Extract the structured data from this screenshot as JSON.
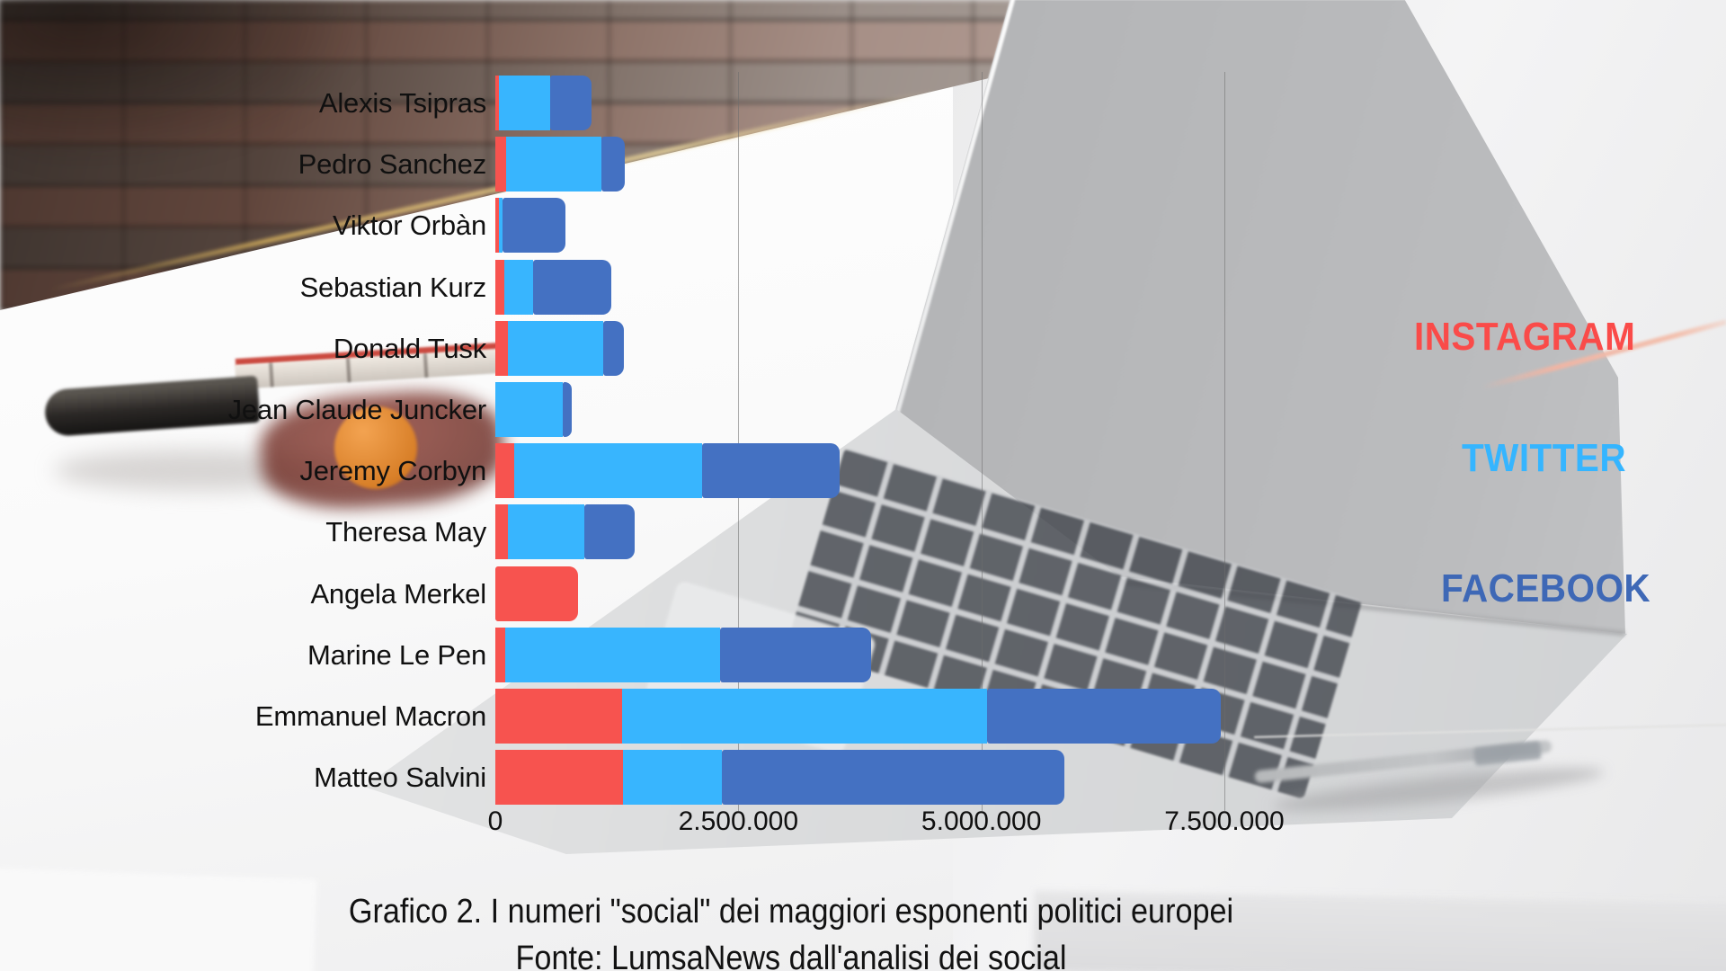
{
  "title": {
    "line1": "Grafico 2. I numeri \"social\" dei maggiori esponenti politici europei",
    "line2": "Fonte: LumsaNews dall'analisi dei social"
  },
  "legend": [
    {
      "label": "INSTAGRAM",
      "color": "#fa4b49"
    },
    {
      "label": "TWITTER",
      "color": "#35b5ff"
    },
    {
      "label": "FACEBOOK",
      "color": "#3e68b6"
    }
  ],
  "chart_data": {
    "type": "bar",
    "orientation": "horizontal",
    "stacked": true,
    "grid": "vertical",
    "legend_position": "right",
    "categories": [
      "Alexis Tsipras",
      "Pedro Sanchez",
      "Viktor Orbàn",
      "Sebastian Kurz",
      "Donald Tusk",
      "Jean Claude Juncker",
      "Jeremy Corbyn",
      "Theresa May",
      "Angela Merkel",
      "Marine Le Pen",
      "Emmanuel Macron",
      "Matteo Salvini"
    ],
    "series": [
      {
        "name": "Instagram",
        "color": "#f7534f",
        "values": [
          40000,
          110000,
          35000,
          90000,
          130000,
          0,
          195000,
          130000,
          850000,
          100000,
          1300000,
          1310000
        ]
      },
      {
        "name": "Twitter",
        "color": "#38b5fe",
        "values": [
          520000,
          980000,
          35000,
          300000,
          980000,
          690000,
          1930000,
          785000,
          0,
          2210000,
          3760000,
          1020000
        ]
      },
      {
        "name": "Facebook",
        "color": "#4471c2",
        "values": [
          430000,
          240000,
          650000,
          800000,
          215000,
          95000,
          1420000,
          520000,
          0,
          1560000,
          2400000,
          3520000
        ]
      }
    ],
    "xlim": [
      0,
      7500000
    ],
    "xticks": [
      {
        "value": 0,
        "label": "0"
      },
      {
        "value": 2500000,
        "label": "2.500.000"
      },
      {
        "value": 5000000,
        "label": "5.000.000"
      },
      {
        "value": 7500000,
        "label": "7.500.000"
      }
    ],
    "title": "Grafico 2. I numeri \"social\" dei maggiori esponenti politici europei",
    "subtitle": "Fonte: LumsaNews dall'analisi dei social"
  }
}
